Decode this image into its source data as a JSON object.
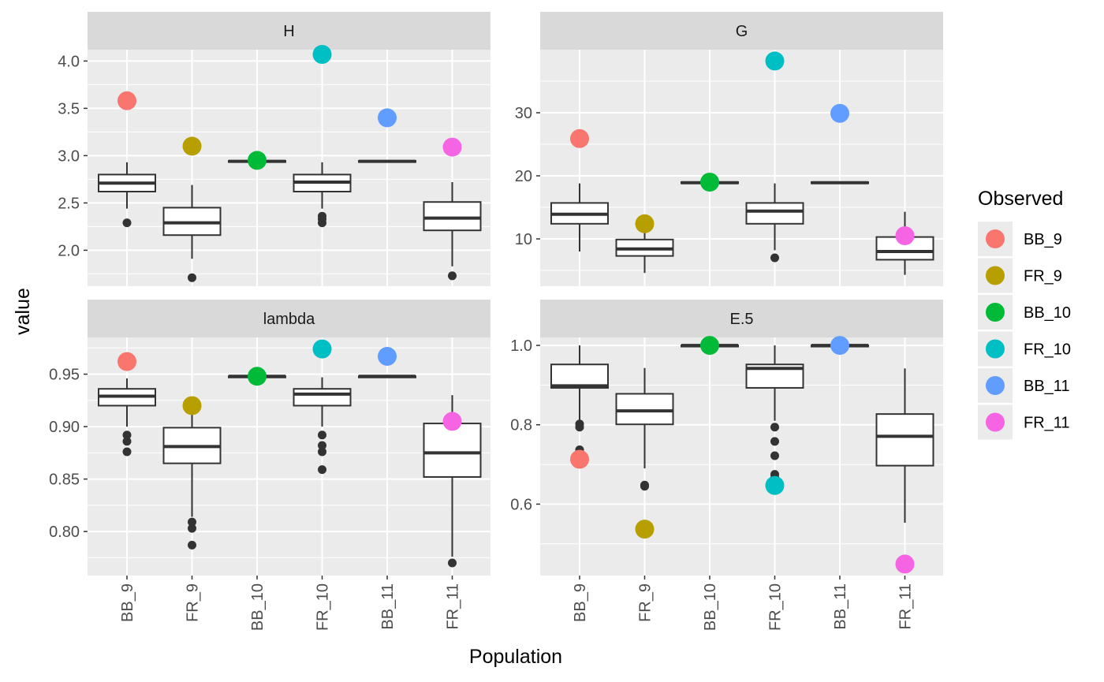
{
  "chart_data": {
    "type": "boxplot",
    "xlabel": "Population",
    "ylabel": "value",
    "categories": [
      "BB_9",
      "FR_9",
      "BB_10",
      "FR_10",
      "BB_11",
      "FR_11"
    ],
    "legend": {
      "title": "Observed",
      "placement": "right",
      "entries": [
        {
          "name": "BB_9",
          "color": "#F8766D"
        },
        {
          "name": "FR_9",
          "color": "#B79F00"
        },
        {
          "name": "BB_10",
          "color": "#00BA38"
        },
        {
          "name": "FR_10",
          "color": "#00BFC4"
        },
        {
          "name": "BB_11",
          "color": "#619CFF"
        },
        {
          "name": "FR_11",
          "color": "#F564E3"
        }
      ]
    },
    "panels": [
      {
        "title": "H",
        "ylim": [
          1.62,
          4.12
        ],
        "major_ticks": [
          2.0,
          2.5,
          3.0,
          3.5,
          4.0
        ],
        "tick_labels": [
          "2.0",
          "2.5",
          "3.0",
          "3.5",
          "4.0"
        ],
        "minor_ticks": [
          1.75,
          2.25,
          2.75,
          3.25,
          3.75
        ],
        "boxes": [
          {
            "category": "BB_9",
            "whisker_low": 2.44,
            "q1": 2.62,
            "median": 2.71,
            "q3": 2.8,
            "whisker_high": 2.93,
            "outliers": [
              2.29
            ]
          },
          {
            "category": "FR_9",
            "whisker_low": 1.91,
            "q1": 2.16,
            "median": 2.29,
            "q3": 2.45,
            "whisker_high": 2.69,
            "outliers": [
              1.71
            ]
          },
          {
            "category": "BB_10",
            "whisker_low": 2.94,
            "q1": 2.94,
            "median": 2.94,
            "q3": 2.945,
            "whisker_high": 2.945,
            "outliers": []
          },
          {
            "category": "FR_10",
            "whisker_low": 2.44,
            "q1": 2.62,
            "median": 2.72,
            "q3": 2.8,
            "whisker_high": 2.93,
            "outliers": [
              2.36,
              2.33,
              2.29
            ]
          },
          {
            "category": "BB_11",
            "whisker_low": 2.94,
            "q1": 2.94,
            "median": 2.94,
            "q3": 2.945,
            "whisker_high": 2.945,
            "outliers": []
          },
          {
            "category": "FR_11",
            "whisker_low": 1.83,
            "q1": 2.21,
            "median": 2.34,
            "q3": 2.51,
            "whisker_high": 2.72,
            "outliers": [
              1.73
            ]
          }
        ],
        "observed": [
          3.58,
          3.1,
          2.95,
          4.07,
          3.4,
          3.09
        ]
      },
      {
        "title": "G",
        "ylim": [
          2.5,
          40.0
        ],
        "major_ticks": [
          10,
          20,
          30
        ],
        "tick_labels": [
          "10",
          "20",
          "30"
        ],
        "minor_ticks": [
          5,
          15,
          25,
          35
        ],
        "boxes": [
          {
            "category": "BB_9",
            "whisker_low": 8.0,
            "q1": 12.4,
            "median": 13.9,
            "q3": 15.7,
            "whisker_high": 18.8,
            "outliers": []
          },
          {
            "category": "FR_9",
            "whisker_low": 4.6,
            "q1": 7.3,
            "median": 8.4,
            "q3": 9.9,
            "whisker_high": 11.9,
            "outliers": []
          },
          {
            "category": "BB_10",
            "whisker_low": 18.9,
            "q1": 18.9,
            "median": 18.9,
            "q3": 19.0,
            "whisker_high": 19.0,
            "outliers": []
          },
          {
            "category": "FR_10",
            "whisker_low": 8.2,
            "q1": 12.4,
            "median": 14.4,
            "q3": 15.7,
            "whisker_high": 18.8,
            "outliers": [
              7.0
            ]
          },
          {
            "category": "BB_11",
            "whisker_low": 18.9,
            "q1": 18.9,
            "median": 18.9,
            "q3": 19.0,
            "whisker_high": 19.0,
            "outliers": []
          },
          {
            "category": "FR_11",
            "whisker_low": 4.3,
            "q1": 6.7,
            "median": 8.0,
            "q3": 10.3,
            "whisker_high": 14.3,
            "outliers": []
          }
        ],
        "observed": [
          25.9,
          12.4,
          19.0,
          38.2,
          29.9,
          10.5
        ]
      },
      {
        "title": "lambda",
        "ylim": [
          0.758,
          0.985
        ],
        "major_ticks": [
          0.8,
          0.85,
          0.9,
          0.95
        ],
        "tick_labels": [
          "0.80",
          "0.85",
          "0.90",
          "0.95"
        ],
        "minor_ticks": [
          0.775,
          0.825,
          0.875,
          0.925,
          0.975
        ],
        "boxes": [
          {
            "category": "BB_9",
            "whisker_low": 0.9,
            "q1": 0.92,
            "median": 0.929,
            "q3": 0.936,
            "whisker_high": 0.946,
            "outliers": [
              0.892,
              0.886,
              0.876
            ]
          },
          {
            "category": "FR_9",
            "whisker_low": 0.814,
            "q1": 0.865,
            "median": 0.881,
            "q3": 0.899,
            "whisker_high": 0.926,
            "outliers": [
              0.809,
              0.803,
              0.787
            ]
          },
          {
            "category": "BB_10",
            "whisker_low": 0.9475,
            "q1": 0.9475,
            "median": 0.948,
            "q3": 0.948,
            "whisker_high": 0.948,
            "outliers": []
          },
          {
            "category": "FR_10",
            "whisker_low": 0.9,
            "q1": 0.92,
            "median": 0.931,
            "q3": 0.936,
            "whisker_high": 0.947,
            "outliers": [
              0.892,
              0.882,
              0.876,
              0.859
            ]
          },
          {
            "category": "BB_11",
            "whisker_low": 0.9475,
            "q1": 0.9475,
            "median": 0.948,
            "q3": 0.948,
            "whisker_high": 0.948,
            "outliers": []
          },
          {
            "category": "FR_11",
            "whisker_low": 0.776,
            "q1": 0.852,
            "median": 0.875,
            "q3": 0.903,
            "whisker_high": 0.93,
            "outliers": [
              0.77
            ]
          }
        ],
        "observed": [
          0.962,
          0.92,
          0.948,
          0.974,
          0.967,
          0.905
        ]
      },
      {
        "title": "E.5",
        "ylim": [
          0.42,
          1.02
        ],
        "major_ticks": [
          0.6,
          0.8,
          1.0
        ],
        "tick_labels": [
          "0.6",
          "0.8",
          "1.0"
        ],
        "minor_ticks": [
          0.5,
          0.7,
          0.9
        ],
        "boxes": [
          {
            "category": "BB_9",
            "whisker_low": 0.81,
            "q1": 0.893,
            "median": 0.898,
            "q3": 0.952,
            "whisker_high": 1.0,
            "outliers": [
              0.802,
              0.794,
              0.737,
              0.718
            ]
          },
          {
            "category": "FR_9",
            "whisker_low": 0.69,
            "q1": 0.801,
            "median": 0.835,
            "q3": 0.878,
            "whisker_high": 0.943,
            "outliers": [
              0.648,
              0.645
            ]
          },
          {
            "category": "BB_10",
            "whisker_low": 0.998,
            "q1": 0.998,
            "median": 1.0,
            "q3": 1.0,
            "whisker_high": 1.0,
            "outliers": []
          },
          {
            "category": "FR_10",
            "whisker_low": 0.81,
            "q1": 0.893,
            "median": 0.942,
            "q3": 0.952,
            "whisker_high": 1.0,
            "outliers": [
              0.794,
              0.758,
              0.722,
              0.675,
              0.668
            ]
          },
          {
            "category": "BB_11",
            "whisker_low": 0.998,
            "q1": 0.998,
            "median": 1.0,
            "q3": 1.0,
            "whisker_high": 1.0,
            "outliers": []
          },
          {
            "category": "FR_11",
            "whisker_low": 0.553,
            "q1": 0.697,
            "median": 0.771,
            "q3": 0.827,
            "whisker_high": 0.942,
            "outliers": []
          }
        ],
        "observed": [
          0.713,
          0.537,
          1.0,
          0.647,
          1.0,
          0.449
        ]
      }
    ]
  }
}
